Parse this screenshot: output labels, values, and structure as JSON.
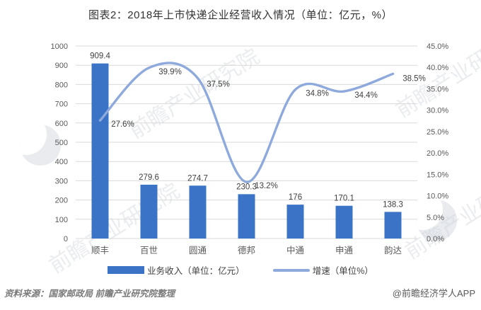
{
  "title": "图表2：2018年上市快递企业经营收入情况（单位：亿元，%）",
  "chart_data": {
    "type": "bar",
    "subtype": "bar-line-combo",
    "categories": [
      "顺丰",
      "百世",
      "圆通",
      "德邦",
      "中通",
      "申通",
      "韵达"
    ],
    "series": [
      {
        "name": "业务收入（单位：亿元）",
        "type": "bar",
        "axis": "left",
        "color": "#3B74C6",
        "values": [
          909.4,
          279.6,
          274.7,
          230.3,
          176,
          170.1,
          138.3
        ],
        "labels": [
          "909.4",
          "279.6",
          "274.7",
          "230.3",
          "176",
          "170.1",
          "138.3"
        ]
      },
      {
        "name": "增速（单位%）",
        "type": "line",
        "axis": "right",
        "color": "#8EA9DC",
        "values": [
          27.6,
          39.9,
          37.5,
          13.2,
          34.8,
          34.4,
          38.5
        ],
        "labels": [
          "27.6%",
          "39.9%",
          "37.5%",
          "13.2%",
          "34.8%",
          "34.4%",
          "38.5%"
        ]
      }
    ],
    "left_axis": {
      "min": 0,
      "max": 1000,
      "step": 100,
      "tick_labels": [
        "0",
        "100",
        "200",
        "300",
        "400",
        "500",
        "600",
        "700",
        "800",
        "900",
        "1000"
      ]
    },
    "right_axis": {
      "min": 0,
      "max": 45,
      "step": 5,
      "tick_labels": [
        "0.0%",
        "5.0%",
        "10.0%",
        "15.0%",
        "20.0%",
        "25.0%",
        "30.0%",
        "35.0%",
        "40.0%",
        "45.0%"
      ]
    },
    "grid": true,
    "legend_position": "bottom"
  },
  "legend": {
    "items": [
      {
        "label": "业务收入（单位：亿元）",
        "color": "#3B74C6"
      },
      {
        "label": "增速（单位%）",
        "color": "#8EA9DC"
      }
    ]
  },
  "footer": {
    "source": "资料来源：国家邮政局 前瞻产业研究院整理",
    "attribution": "@前瞻经济学人APP"
  },
  "watermark": {
    "text": "前瞻产业研究院"
  },
  "colors": {
    "bar": "#3B74C6",
    "line": "#8EA9DC",
    "grid": "#D9D9D9",
    "tick_text": "#595959",
    "label_text": "#404040"
  }
}
